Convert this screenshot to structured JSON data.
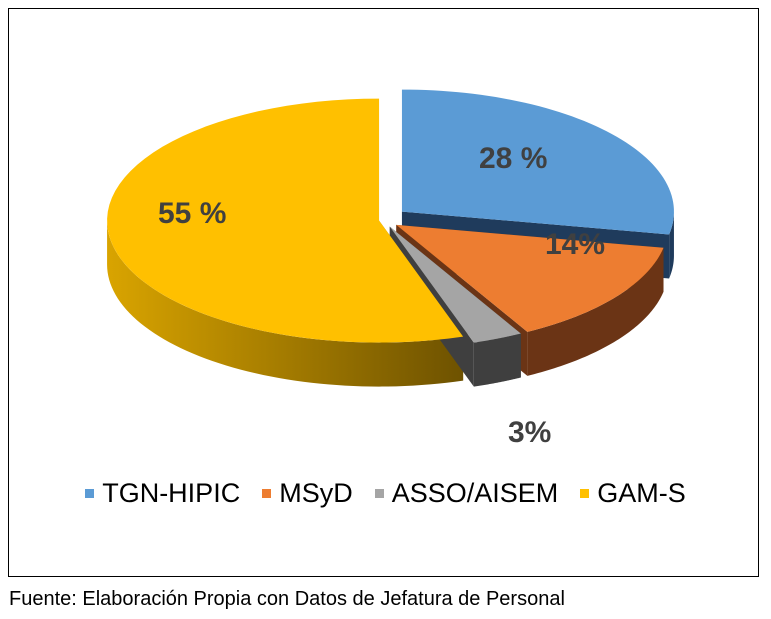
{
  "chart_data": {
    "type": "pie",
    "style": "3d-exploded",
    "categories": [
      "TGN-HIPIC",
      "MSyD",
      "ASSO/AISEM",
      "GAM-S"
    ],
    "values": [
      28,
      14,
      3,
      55
    ],
    "data_labels": [
      "28 %",
      "14%",
      "3%",
      "55 %"
    ],
    "colors": [
      "#5B9BD5",
      "#ED7D31",
      "#A5A5A5",
      "#FFC000"
    ],
    "side_colors": [
      "#1F3B5C",
      "#6B3415",
      "#3F3F3F",
      "#A37A00"
    ],
    "legend_position": "bottom"
  },
  "caption": "Fuente: Elaboración Propia con Datos de Jefatura de Personal"
}
